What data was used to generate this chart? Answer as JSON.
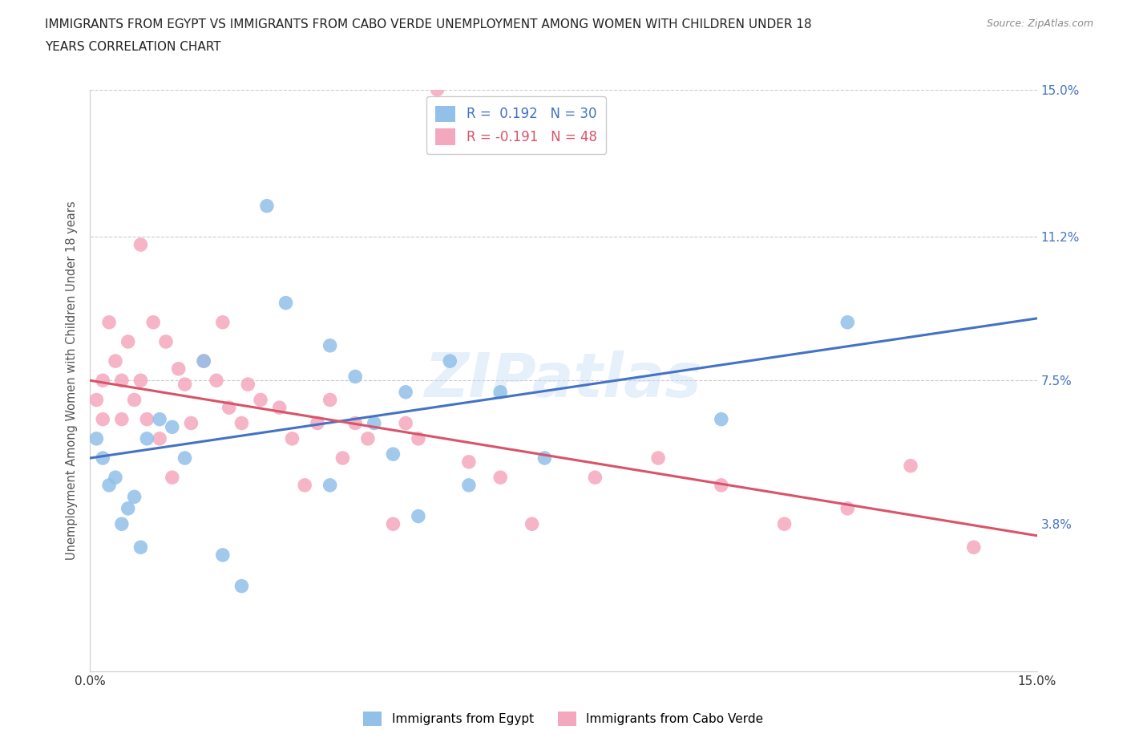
{
  "title_line1": "IMMIGRANTS FROM EGYPT VS IMMIGRANTS FROM CABO VERDE UNEMPLOYMENT AMONG WOMEN WITH CHILDREN UNDER 18",
  "title_line2": "YEARS CORRELATION CHART",
  "source": "Source: ZipAtlas.com",
  "ylabel": "Unemployment Among Women with Children Under 18 years",
  "xlim": [
    0.0,
    0.15
  ],
  "ylim": [
    0.0,
    0.15
  ],
  "yticks": [
    0.038,
    0.075,
    0.112,
    0.15
  ],
  "yticklabels": [
    "3.8%",
    "7.5%",
    "11.2%",
    "15.0%"
  ],
  "hlines": [
    0.075,
    0.112,
    0.15
  ],
  "egypt_R": 0.192,
  "egypt_N": 30,
  "caboverde_R": -0.191,
  "caboverde_N": 48,
  "egypt_color": "#92c0e8",
  "caboverde_color": "#f4a8be",
  "egypt_line_color": "#4472c4",
  "caboverde_line_color": "#d9536a",
  "background_color": "#ffffff",
  "watermark": "ZIPatlas",
  "egypt_line_start_y": 0.055,
  "egypt_line_end_y": 0.091,
  "caboverde_line_start_y": 0.075,
  "caboverde_line_end_y": 0.035,
  "egypt_x": [
    0.001,
    0.002,
    0.003,
    0.004,
    0.005,
    0.006,
    0.007,
    0.008,
    0.009,
    0.011,
    0.013,
    0.015,
    0.018,
    0.021,
    0.024,
    0.028,
    0.031,
    0.038,
    0.042,
    0.048,
    0.052,
    0.057,
    0.06,
    0.065,
    0.072,
    0.038,
    0.045,
    0.05,
    0.1,
    0.12
  ],
  "egypt_y": [
    0.06,
    0.055,
    0.048,
    0.05,
    0.038,
    0.042,
    0.045,
    0.032,
    0.06,
    0.065,
    0.063,
    0.055,
    0.08,
    0.03,
    0.022,
    0.12,
    0.095,
    0.084,
    0.076,
    0.056,
    0.04,
    0.08,
    0.048,
    0.072,
    0.055,
    0.048,
    0.064,
    0.072,
    0.065,
    0.09
  ],
  "caboverde_x": [
    0.001,
    0.002,
    0.002,
    0.003,
    0.004,
    0.005,
    0.005,
    0.006,
    0.007,
    0.008,
    0.008,
    0.009,
    0.01,
    0.011,
    0.012,
    0.013,
    0.014,
    0.015,
    0.016,
    0.018,
    0.02,
    0.021,
    0.022,
    0.024,
    0.025,
    0.027,
    0.03,
    0.032,
    0.034,
    0.036,
    0.038,
    0.04,
    0.042,
    0.044,
    0.048,
    0.05,
    0.052,
    0.055,
    0.06,
    0.065,
    0.07,
    0.08,
    0.09,
    0.1,
    0.11,
    0.12,
    0.13,
    0.14
  ],
  "caboverde_y": [
    0.07,
    0.075,
    0.065,
    0.09,
    0.08,
    0.075,
    0.065,
    0.085,
    0.07,
    0.11,
    0.075,
    0.065,
    0.09,
    0.06,
    0.085,
    0.05,
    0.078,
    0.074,
    0.064,
    0.08,
    0.075,
    0.09,
    0.068,
    0.064,
    0.074,
    0.07,
    0.068,
    0.06,
    0.048,
    0.064,
    0.07,
    0.055,
    0.064,
    0.06,
    0.038,
    0.064,
    0.06,
    0.15,
    0.054,
    0.05,
    0.038,
    0.05,
    0.055,
    0.048,
    0.038,
    0.042,
    0.053,
    0.032
  ]
}
